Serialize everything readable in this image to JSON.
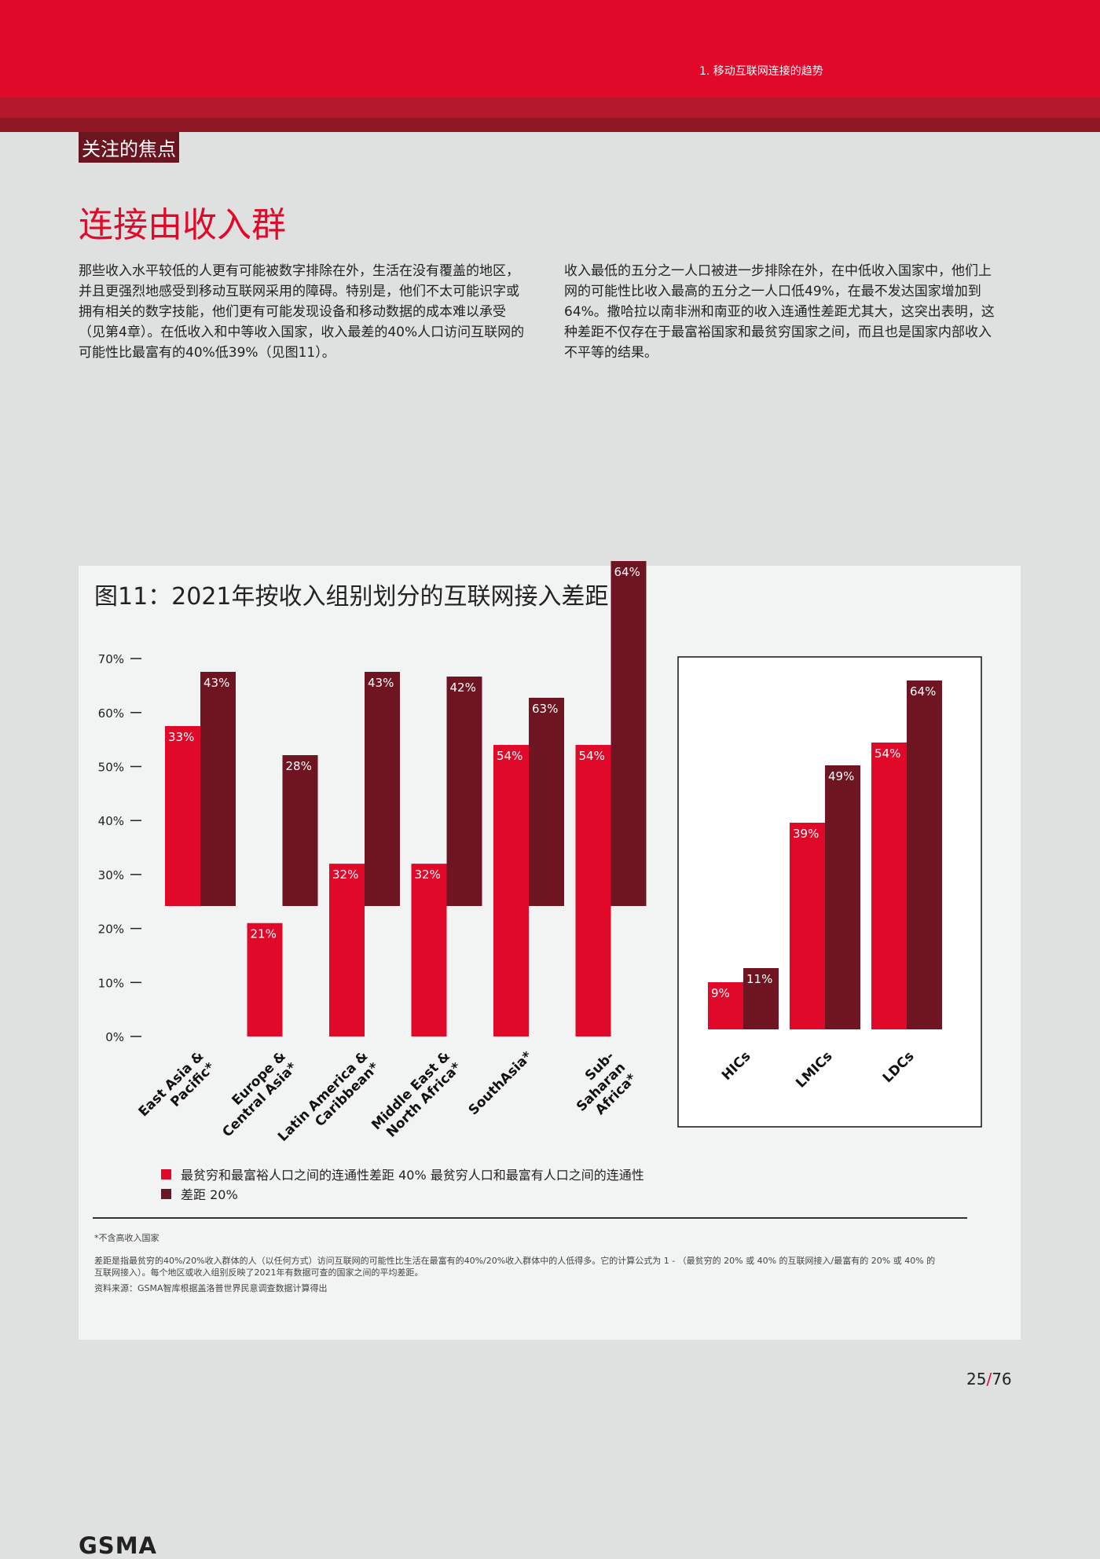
{
  "header": {
    "section": "1. 移动互联网连接的趋势"
  },
  "focus_tag": "关注的焦点",
  "title": "连接由收入群",
  "paragraphs": [
    "那些收入水平较低的人更有可能被数字排除在外，生活在没有覆盖的地区，并且更强烈地感受到移动互联网采用的障碍。特别是，他们不太可能识字或拥有相关的数字技能，他们更有可能发现设备和移动数据的成本难以承受（见第4章）。在低收入和中等收入国家，收入最差的40%人口访问互联网的可能性比最富有的40%低39%（见图11）。",
    "收入最低的五分之一人口被进一步排除在外，在中低收入国家中，他们上网的可能性比收入最高的五分之一人口低49%，在最不发达国家增加到64%。撒哈拉以南非洲和南亚的收入连通性差距尤其大，这突出表明，这种差距不仅存在于最富裕国家和最贫穷国家之间，而且也是国家内部收入不平等的结果。"
  ],
  "figure": {
    "title": "图11：2021年按收入组别划分的互联网接入差距"
  },
  "chart_data": {
    "type": "bar",
    "title": "图11：2021年按收入组别划分的互联网接入差距",
    "ylim": [
      0,
      70
    ],
    "yticks": [
      "0%",
      "10%",
      "20%",
      "30%",
      "40%",
      "50%",
      "60%",
      "70%"
    ],
    "colors": {
      "gap40": "#e0092a",
      "gap20": "#6f1522"
    },
    "regions": {
      "categories": [
        "East Asia & Pacific*",
        "Europe & Central Asia*",
        "Latin America & Caribbean*",
        "Middle East & North Africa*",
        "SouthAsia*",
        "Sub-Saharan Africa*"
      ],
      "series": [
        {
          "name": "最贫穷和最富裕人口之间的连通性差距 40% 最贫穷人口和最富有人口之间的连通性",
          "values": [
            33,
            21,
            32,
            32,
            54,
            54
          ],
          "labels": [
            "33%",
            "21%",
            "32%",
            "32%",
            "54%",
            "54%"
          ]
        },
        {
          "name": "差距 20%",
          "values": [
            43,
            28,
            43,
            42,
            63,
            64
          ],
          "labels": [
            "43%",
            "28%",
            "43%",
            "42%",
            "63%",
            "64%"
          ]
        }
      ]
    },
    "income_groups": {
      "categories": [
        "HICs",
        "LMICs",
        "LDCs"
      ],
      "series": [
        {
          "name": "最贫穷和最富裕人口之间的连通性差距 40% 最贫穷人口和最富有人口之间的连通性",
          "values": [
            9,
            39,
            54
          ],
          "labels": [
            "9%",
            "39%",
            "54%"
          ]
        },
        {
          "name": "差距 20%",
          "values": [
            11,
            49,
            64
          ],
          "labels": [
            "11%",
            "49%",
            "64%"
          ]
        }
      ]
    }
  },
  "legend": [
    {
      "label": "最贫穷和最富裕人口之间的连通性差距 40% 最贫穷人口和最富有人口之间的连通性",
      "color": "#e0092a"
    },
    {
      "label": "差距 20%",
      "color": "#6f1522"
    }
  ],
  "footnotes": {
    "asterisk": "*不含高收入国家",
    "definition": "差距是指最贫穷的40%/20%收入群体的人（以任何方式）访问互联网的可能性比生活在最富有的40%/20%收入群体中的人低得多。它的计算公式为 1 - （最贫穷的 20% 或 40% 的互联网接入/最富有的 20% 或 40% 的互联网接入）。每个地区或收入组别反映了2021年有数据可查的国家之间的平均差距。",
    "source": "资料来源：GSMA智库根据盖洛普世界民意调查数据计算得出"
  },
  "page": {
    "current": "25",
    "separator": "/",
    "total": "76"
  },
  "logo": "GSMA"
}
